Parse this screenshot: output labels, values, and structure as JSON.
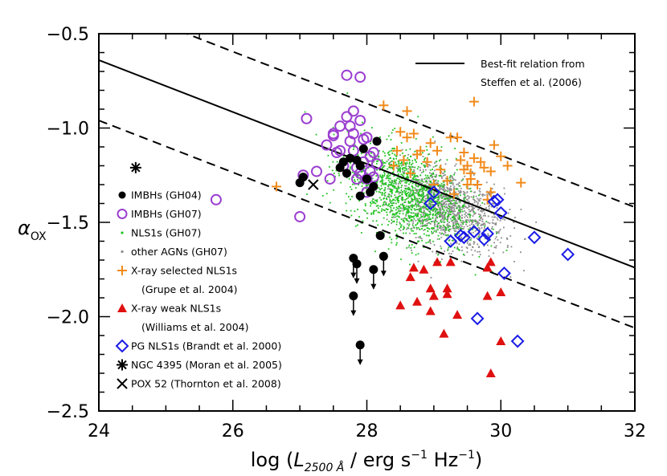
{
  "chart_data": {
    "type": "scatter",
    "title": "",
    "xlabel": {
      "prefix": "log (",
      "L": "L",
      "sub": "2500 Å",
      "mid": " / erg s",
      "sup1": "−1",
      "mid2": " Hz",
      "sup2": "−1",
      "suffix": ")"
    },
    "ylabel": {
      "alpha": "α",
      "sub": "OX"
    },
    "xlim": [
      24,
      32
    ],
    "ylim": [
      -2.5,
      -0.5
    ],
    "xticks": [
      "24",
      "26",
      "28",
      "30",
      "32"
    ],
    "yticks": [
      "−0.5",
      "−1.0",
      "−1.5",
      "−2.0",
      "−2.5"
    ],
    "colors": {
      "imbh_gh04": "#000000",
      "imbh_gh07": "#9b3fd0",
      "nls1_gh07": "#22c322",
      "other_agn": "#8c8c8c",
      "xray_selected": "#f28a1a",
      "xray_weak": "#e01010",
      "pg_nls1": "#1a1ae6",
      "ngc4395": "#000000",
      "pox52": "#000000"
    },
    "legend": [
      {
        "marker": "filled-circle",
        "text": "IMBHs (GH04)"
      },
      {
        "marker": "open-circle",
        "text": "IMBHs (GH07)"
      },
      {
        "marker": "small-dot-green",
        "text": "NLS1s (GH07)"
      },
      {
        "marker": "small-dot-gray",
        "text": "other AGNs (GH07)"
      },
      {
        "marker": "plus",
        "text": "X-ray selected NLS1s"
      },
      {
        "marker": "none",
        "text": "(Grupe et al. 2004)"
      },
      {
        "marker": "triangle",
        "text": "X-ray weak NLS1s"
      },
      {
        "marker": "none",
        "text": "(Williams et al. 2004)"
      },
      {
        "marker": "diamond",
        "text": "PG NLS1s (Brandt et al. 2000)"
      },
      {
        "marker": "asterisk",
        "text": "NGC 4395 (Moran et al. 2005)"
      },
      {
        "marker": "cross",
        "text": "POX 52 (Thornton et al. 2008)"
      }
    ],
    "fit_legend": [
      "Best-fit relation from",
      "Steffen et al. (2006)"
    ],
    "fit_line": {
      "points": [
        [
          24,
          -0.64
        ],
        [
          32,
          -1.74
        ]
      ],
      "offset": 0.32
    },
    "series": [
      {
        "name": "IMBHs (GH04)",
        "marker": "filled-circle",
        "points": [
          [
            27.0,
            -1.29
          ],
          [
            27.05,
            -1.26
          ],
          [
            27.6,
            -1.21
          ],
          [
            27.65,
            -1.18
          ],
          [
            27.7,
            -1.24
          ],
          [
            27.75,
            -1.16
          ],
          [
            27.85,
            -1.17
          ],
          [
            27.9,
            -1.2
          ],
          [
            27.95,
            -1.11
          ],
          [
            28.0,
            -1.27
          ],
          [
            28.1,
            -1.31
          ],
          [
            28.15,
            -1.07
          ],
          [
            27.9,
            -1.36
          ],
          [
            28.05,
            -1.34
          ],
          [
            28.2,
            -1.57
          ]
        ]
      },
      {
        "name": "IMBHs (GH04) upper limits",
        "marker": "filled-circle-limit",
        "points": [
          [
            27.8,
            -1.69
          ],
          [
            27.85,
            -1.72
          ],
          [
            28.1,
            -1.75
          ],
          [
            28.25,
            -1.68
          ],
          [
            27.8,
            -1.89
          ],
          [
            27.9,
            -2.15
          ]
        ]
      },
      {
        "name": "IMBHs (GH07)",
        "marker": "open-circle",
        "points": [
          [
            27.0,
            -1.47
          ],
          [
            27.05,
            -1.25
          ],
          [
            27.1,
            -0.95
          ],
          [
            27.25,
            -1.23
          ],
          [
            27.4,
            -1.09
          ],
          [
            27.5,
            -1.04
          ],
          [
            27.45,
            -1.27
          ],
          [
            27.5,
            -1.03
          ],
          [
            27.6,
            -1.12
          ],
          [
            27.6,
            -0.99
          ],
          [
            27.65,
            -1.2
          ],
          [
            27.7,
            -0.94
          ],
          [
            27.75,
            -0.99
          ],
          [
            27.75,
            -1.07
          ],
          [
            27.8,
            -0.91
          ],
          [
            27.8,
            -1.12
          ],
          [
            27.85,
            -1.21
          ],
          [
            27.85,
            -1.27
          ],
          [
            27.9,
            -0.96
          ],
          [
            27.9,
            -1.24
          ],
          [
            27.95,
            -1.06
          ],
          [
            28.0,
            -1.05
          ],
          [
            28.05,
            -1.23
          ],
          [
            28.1,
            -1.13
          ],
          [
            28.1,
            -1.26
          ],
          [
            28.15,
            -1.19
          ],
          [
            28.0,
            -1.34
          ],
          [
            27.7,
            -0.72
          ],
          [
            27.9,
            -0.73
          ],
          [
            25.75,
            -1.38
          ],
          [
            27.55,
            -1.13
          ],
          [
            27.8,
            -1.03
          ],
          [
            28.05,
            -1.15
          ],
          [
            27.95,
            -1.18
          ],
          [
            28.0,
            -1.27
          ]
        ]
      },
      {
        "name": "X-ray selected NLS1s",
        "marker": "plus",
        "points": [
          [
            26.65,
            -1.31
          ],
          [
            28.25,
            -0.88
          ],
          [
            28.6,
            -0.91
          ],
          [
            28.5,
            -1.02
          ],
          [
            28.6,
            -1.05
          ],
          [
            28.7,
            -1.03
          ],
          [
            28.45,
            -1.12
          ],
          [
            28.55,
            -1.17
          ],
          [
            28.65,
            -1.24
          ],
          [
            28.8,
            -1.12
          ],
          [
            28.9,
            -1.18
          ],
          [
            28.95,
            -1.08
          ],
          [
            29.05,
            -1.12
          ],
          [
            29.1,
            -1.22
          ],
          [
            29.2,
            -1.28
          ],
          [
            29.25,
            -1.05
          ],
          [
            29.35,
            -1.05
          ],
          [
            29.4,
            -1.17
          ],
          [
            29.45,
            -1.22
          ],
          [
            29.5,
            -1.2
          ],
          [
            29.55,
            -1.27
          ],
          [
            29.6,
            -1.16
          ],
          [
            29.65,
            -1.3
          ],
          [
            29.7,
            -1.18
          ],
          [
            29.75,
            -1.21
          ],
          [
            29.85,
            -1.23
          ],
          [
            29.9,
            -1.09
          ],
          [
            30.0,
            -1.15
          ],
          [
            30.1,
            -1.2
          ],
          [
            29.6,
            -0.86
          ],
          [
            29.45,
            -1.13
          ],
          [
            30.3,
            -1.29
          ],
          [
            28.4,
            -1.2
          ],
          [
            29.3,
            -1.35
          ],
          [
            29.5,
            -1.3
          ],
          [
            29.85,
            -1.34
          ],
          [
            29.0,
            -1.3
          ],
          [
            28.75,
            -1.14
          ],
          [
            29.55,
            -1.24
          ],
          [
            29.8,
            -1.38
          ]
        ]
      },
      {
        "name": "X-ray weak NLS1s",
        "marker": "triangle",
        "points": [
          [
            28.5,
            -1.94
          ],
          [
            28.65,
            -1.79
          ],
          [
            28.7,
            -1.74
          ],
          [
            28.75,
            -1.92
          ],
          [
            28.85,
            -1.75
          ],
          [
            28.95,
            -1.85
          ],
          [
            29.0,
            -1.89
          ],
          [
            28.95,
            -1.97
          ],
          [
            29.05,
            -1.71
          ],
          [
            29.2,
            -1.88
          ],
          [
            29.2,
            -1.85
          ],
          [
            29.25,
            -1.71
          ],
          [
            29.15,
            -2.09
          ],
          [
            29.35,
            -1.99
          ],
          [
            29.8,
            -1.74
          ],
          [
            29.8,
            -1.89
          ],
          [
            29.85,
            -1.71
          ],
          [
            30.0,
            -1.87
          ],
          [
            30.0,
            -2.13
          ],
          [
            29.85,
            -2.3
          ]
        ]
      },
      {
        "name": "PG NLS1s",
        "marker": "diamond",
        "points": [
          [
            28.95,
            -1.4
          ],
          [
            29.0,
            -1.34
          ],
          [
            29.25,
            -1.6
          ],
          [
            29.4,
            -1.57
          ],
          [
            29.45,
            -1.58
          ],
          [
            29.6,
            -1.55
          ],
          [
            29.75,
            -1.59
          ],
          [
            29.8,
            -1.56
          ],
          [
            29.9,
            -1.39
          ],
          [
            29.95,
            -1.38
          ],
          [
            30.0,
            -1.45
          ],
          [
            30.05,
            -1.77
          ],
          [
            29.65,
            -2.01
          ],
          [
            30.25,
            -2.13
          ],
          [
            30.5,
            -1.58
          ],
          [
            31.0,
            -1.67
          ]
        ]
      },
      {
        "name": "NGC 4395",
        "marker": "asterisk",
        "points": [
          [
            24.55,
            -1.21
          ]
        ]
      },
      {
        "name": "POX 52",
        "marker": "cross",
        "points": [
          [
            27.2,
            -1.3
          ]
        ]
      }
    ],
    "cloud": {
      "nls1": {
        "x_range": [
          27.0,
          30.2
        ],
        "center": [
          28.6,
          -1.35
        ],
        "n": 1300
      },
      "other": {
        "x_range": [
          27.3,
          30.6
        ],
        "center": [
          29.2,
          -1.42
        ],
        "n": 1200
      }
    }
  }
}
